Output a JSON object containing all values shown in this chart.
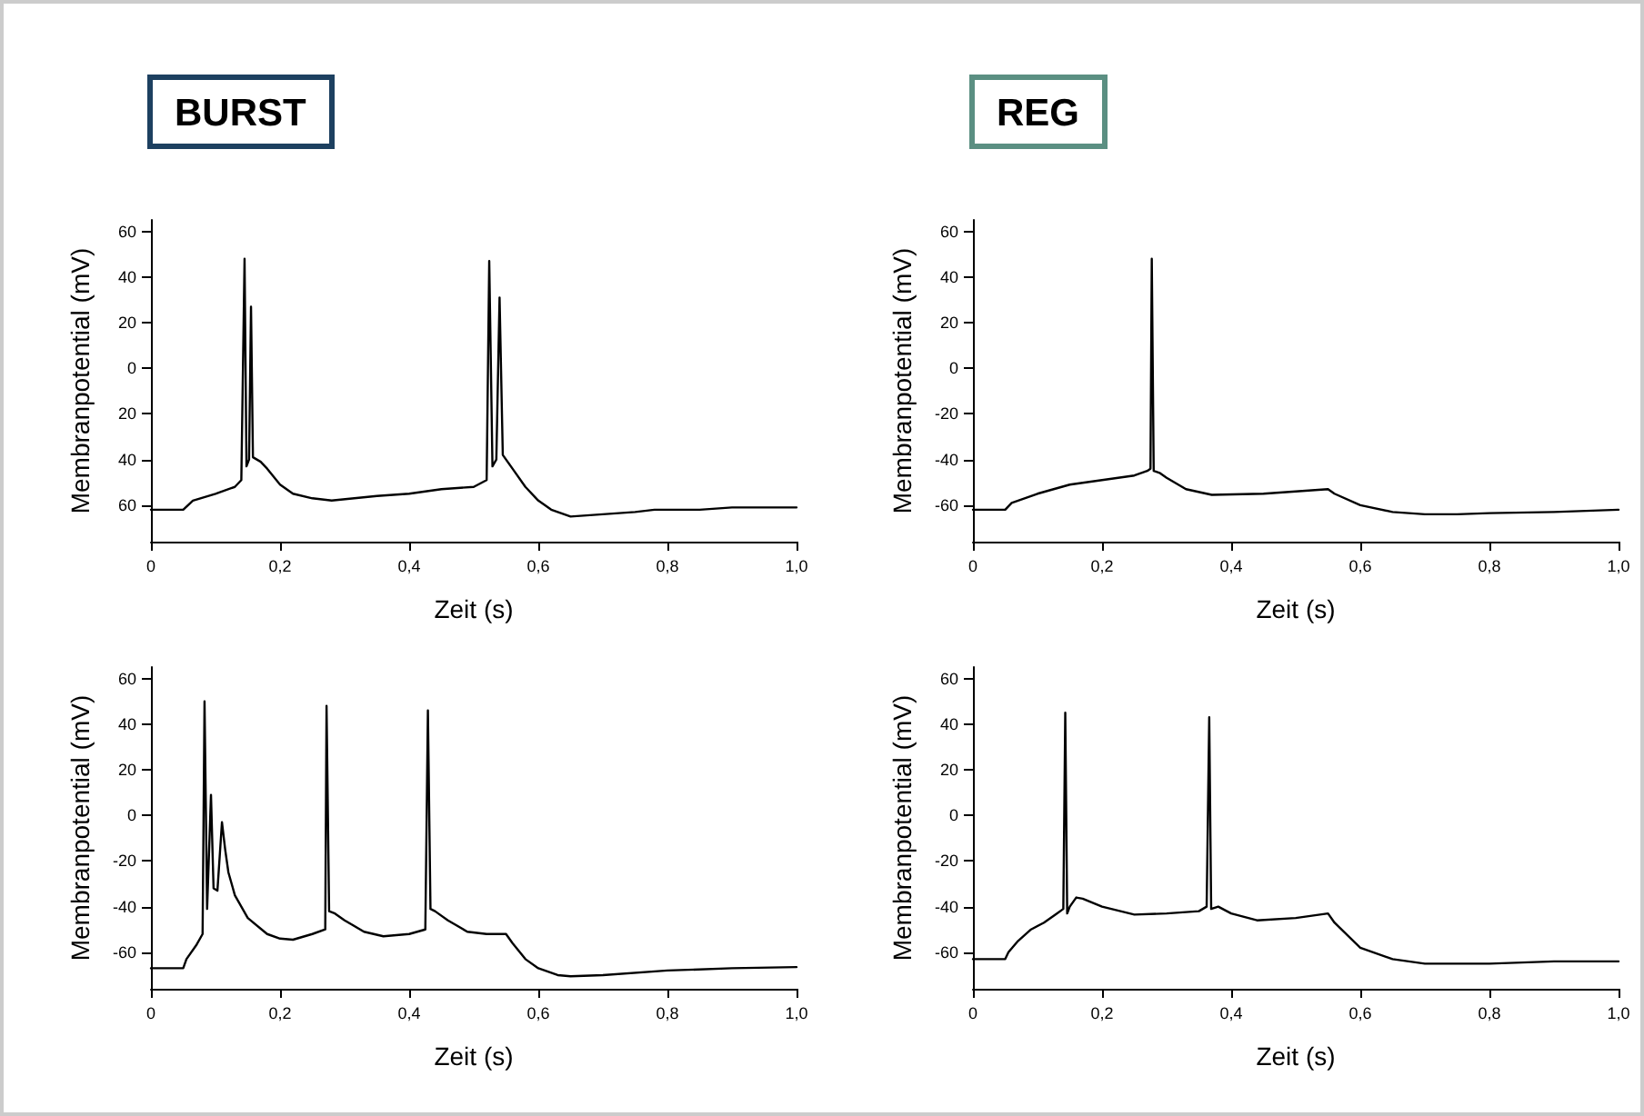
{
  "chart_data": [
    {
      "type": "line",
      "title": "BURST",
      "xlabel": "Zeit (s)",
      "ylabel": "Membranpotential (mV)",
      "xlim": [
        0,
        1
      ],
      "ylim": [
        -76,
        65
      ],
      "xticks": [
        {
          "value": 0,
          "label": "0"
        },
        {
          "value": 0.2,
          "label": "0,2"
        },
        {
          "value": 0.4,
          "label": "0,4"
        },
        {
          "value": 0.6,
          "label": "0,6"
        },
        {
          "value": 0.8,
          "label": "0,8"
        },
        {
          "value": 1,
          "label": "1,0"
        }
      ],
      "yticks": [
        {
          "value": -60,
          "label": "60"
        },
        {
          "value": -40,
          "label": "40"
        },
        {
          "value": -20,
          "label": "20"
        },
        0,
        20,
        40,
        60
      ],
      "grid": false,
      "marker": "none",
      "line_style": "solid",
      "series": [
        {
          "color": "#000000",
          "x": [
            0,
            0.05,
            0.065,
            0.1,
            0.13,
            0.14,
            0.145,
            0.148,
            0.152,
            0.155,
            0.158,
            0.17,
            0.18,
            0.2,
            0.22,
            0.25,
            0.28,
            0.35,
            0.4,
            0.45,
            0.5,
            0.52,
            0.524,
            0.529,
            0.535,
            0.54,
            0.545,
            0.56,
            0.58,
            0.6,
            0.62,
            0.65,
            0.7,
            0.75,
            0.78,
            0.85,
            0.9,
            1.0
          ],
          "values": [
            -62,
            -62,
            -58,
            -55,
            -52,
            -49,
            48,
            -43,
            -40,
            27,
            -39,
            -41,
            -44,
            -51,
            -55,
            -57,
            -58,
            -56,
            -55,
            -53,
            -52,
            -49,
            47,
            -43,
            -40,
            31,
            -38,
            -44,
            -52,
            -58,
            -62,
            -65,
            -64,
            -63,
            -62,
            -62,
            -61,
            -61
          ]
        }
      ]
    },
    {
      "type": "line",
      "title": "REG",
      "xlabel": "Zeit (s)",
      "ylabel": "Membranpotential (mV)",
      "xlim": [
        0,
        1
      ],
      "ylim": [
        -76,
        65
      ],
      "xticks": [
        {
          "value": 0,
          "label": "0"
        },
        {
          "value": 0.2,
          "label": "0,2"
        },
        {
          "value": 0.4,
          "label": "0,4"
        },
        {
          "value": 0.6,
          "label": "0,6"
        },
        {
          "value": 0.8,
          "label": "0,8"
        },
        {
          "value": 1,
          "label": "1,0"
        }
      ],
      "yticks": [
        -60,
        -40,
        -20,
        0,
        20,
        40,
        60
      ],
      "grid": false,
      "marker": "none",
      "line_style": "solid",
      "series": [
        {
          "color": "#000000",
          "x": [
            0,
            0.05,
            0.06,
            0.1,
            0.15,
            0.2,
            0.25,
            0.27,
            0.275,
            0.277,
            0.28,
            0.29,
            0.3,
            0.33,
            0.37,
            0.45,
            0.5,
            0.55,
            0.56,
            0.6,
            0.65,
            0.7,
            0.75,
            0.8,
            0.9,
            1.0
          ],
          "values": [
            -62,
            -62,
            -59,
            -55,
            -51,
            -49,
            -47,
            -45,
            -44,
            48,
            -45,
            -46,
            -48,
            -53,
            -55.5,
            -55,
            -54,
            -53,
            -55,
            -60,
            -63,
            -64,
            -64,
            -63.5,
            -63,
            -62
          ]
        }
      ]
    },
    {
      "type": "line",
      "xlabel": "Zeit (s)",
      "ylabel": "Membranpotential (mV)",
      "xlim": [
        0,
        1
      ],
      "ylim": [
        -76,
        65
      ],
      "xticks": [
        {
          "value": 0,
          "label": "0"
        },
        {
          "value": 0.2,
          "label": "0,2"
        },
        {
          "value": 0.4,
          "label": "0,4"
        },
        {
          "value": 0.6,
          "label": "0,6"
        },
        {
          "value": 0.8,
          "label": "0,8"
        },
        {
          "value": 1,
          "label": "1,0"
        }
      ],
      "yticks": [
        -60,
        -40,
        -20,
        0,
        20,
        40,
        60
      ],
      "grid": false,
      "marker": "none",
      "line_style": "solid",
      "series": [
        {
          "color": "#000000",
          "x": [
            0,
            0.05,
            0.055,
            0.07,
            0.08,
            0.083,
            0.087,
            0.093,
            0.097,
            0.103,
            0.11,
            0.115,
            0.12,
            0.13,
            0.15,
            0.18,
            0.2,
            0.22,
            0.25,
            0.27,
            0.272,
            0.276,
            0.285,
            0.3,
            0.33,
            0.36,
            0.4,
            0.425,
            0.429,
            0.433,
            0.44,
            0.46,
            0.49,
            0.52,
            0.55,
            0.56,
            0.58,
            0.6,
            0.63,
            0.65,
            0.7,
            0.8,
            0.9,
            1.0
          ],
          "values": [
            -67,
            -67,
            -63,
            -57,
            -52,
            50,
            -41,
            9,
            -32,
            -33,
            -3,
            -15,
            -25,
            -35,
            -45,
            -52,
            -54,
            -54.5,
            -52,
            -50,
            48,
            -42,
            -43,
            -46,
            -51,
            -53,
            -52,
            -50,
            46,
            -41,
            -42,
            -46,
            -51,
            -52,
            -52,
            -56,
            -63,
            -67,
            -70,
            -70.5,
            -70,
            -68,
            -67,
            -66.5
          ]
        }
      ]
    },
    {
      "type": "line",
      "xlabel": "Zeit (s)",
      "ylabel": "Membranpotential (mV)",
      "xlim": [
        0,
        1
      ],
      "ylim": [
        -76,
        65
      ],
      "xticks": [
        {
          "value": 0,
          "label": "0"
        },
        {
          "value": 0.2,
          "label": "0,2"
        },
        {
          "value": 0.4,
          "label": "0,4"
        },
        {
          "value": 0.6,
          "label": "0,6"
        },
        {
          "value": 0.8,
          "label": "0,8"
        },
        {
          "value": 1,
          "label": "1,0"
        }
      ],
      "yticks": [
        -60,
        -40,
        -20,
        0,
        20,
        40,
        60
      ],
      "grid": false,
      "marker": "none",
      "line_style": "solid",
      "series": [
        {
          "color": "#000000",
          "x": [
            0,
            0.05,
            0.055,
            0.07,
            0.09,
            0.11,
            0.13,
            0.14,
            0.143,
            0.146,
            0.15,
            0.16,
            0.17,
            0.2,
            0.25,
            0.3,
            0.35,
            0.362,
            0.366,
            0.369,
            0.38,
            0.4,
            0.44,
            0.5,
            0.55,
            0.56,
            0.6,
            0.65,
            0.7,
            0.8,
            0.9,
            1.0
          ],
          "values": [
            -63,
            -63,
            -60,
            -55,
            -50,
            -47,
            -43,
            -41,
            45,
            -43,
            -40,
            -36,
            -36.5,
            -40,
            -43.5,
            -43,
            -42,
            -40,
            43,
            -41,
            -40,
            -43,
            -46,
            -45,
            -43,
            -47,
            -58,
            -63,
            -65,
            -65,
            -64,
            -64
          ]
        }
      ]
    }
  ]
}
